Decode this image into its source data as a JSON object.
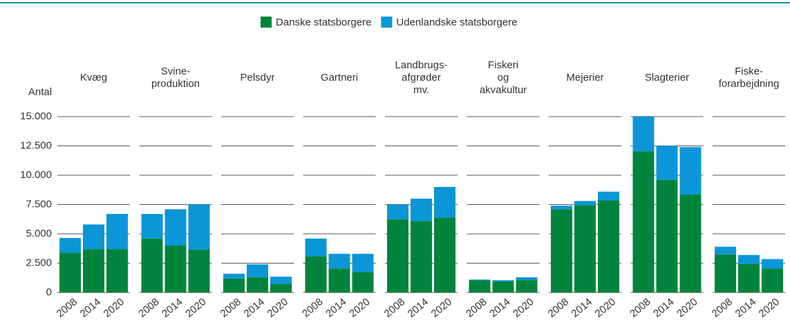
{
  "chart_data": {
    "type": "bar",
    "stacked": true,
    "ylabel": "Antal",
    "ylim": [
      0,
      15000
    ],
    "yticks": [
      0,
      {
        "value": 2500,
        "label": "2.500"
      },
      {
        "value": 5000,
        "label": "5.000"
      },
      {
        "value": 7500,
        "label": "7.500"
      },
      {
        "value": 10000,
        "label": "10.000"
      },
      {
        "value": 12500,
        "label": "12.500"
      },
      {
        "value": 15000,
        "label": "15.000"
      }
    ],
    "grid": true,
    "legend": "top",
    "series": [
      {
        "name": "Danske statsborgere",
        "color": "#00843d"
      },
      {
        "name": "Udenlandske statsborgere",
        "color": "#0b96d8"
      }
    ],
    "panels": [
      {
        "title": [
          "Kvæg"
        ],
        "categories": [
          "2008",
          "2014",
          "2020"
        ],
        "series": [
          {
            "values": [
              3400,
              3700,
              3700
            ]
          },
          {
            "values": [
              1250,
              2100,
              3000
            ]
          }
        ]
      },
      {
        "title": [
          "Svine-",
          "produktion"
        ],
        "categories": [
          "2008",
          "2014",
          "2020"
        ],
        "series": [
          {
            "values": [
              4600,
              4000,
              3650
            ]
          },
          {
            "values": [
              2100,
              3100,
              3850
            ]
          }
        ]
      },
      {
        "title": [
          "Pelsdyr"
        ],
        "categories": [
          "2008",
          "2014",
          "2020"
        ],
        "series": [
          {
            "values": [
              1180,
              1300,
              750
            ]
          },
          {
            "values": [
              420,
              1100,
              600
            ]
          }
        ]
      },
      {
        "title": [
          "Gartneri"
        ],
        "categories": [
          "2008",
          "2014",
          "2020"
        ],
        "series": [
          {
            "values": [
              3100,
              2050,
              1750
            ]
          },
          {
            "values": [
              1500,
              1250,
              1550
            ]
          }
        ]
      },
      {
        "title": [
          "Landbrugs-",
          "afgrøder",
          "mv."
        ],
        "categories": [
          "2008",
          "2014",
          "2020"
        ],
        "series": [
          {
            "values": [
              6250,
              6100,
              6400
            ]
          },
          {
            "values": [
              1250,
              1900,
              2600
            ]
          }
        ]
      },
      {
        "title": [
          "Fiskeri",
          "og",
          "akvakultur"
        ],
        "categories": [
          "2008",
          "2014",
          "2020"
        ],
        "series": [
          {
            "values": [
              1050,
              950,
              1050
            ]
          },
          {
            "values": [
              50,
              100,
              250
            ]
          }
        ]
      },
      {
        "title": [
          "Mejerier"
        ],
        "categories": [
          "2008",
          "2014",
          "2020"
        ],
        "series": [
          {
            "values": [
              7100,
              7450,
              7850
            ]
          },
          {
            "values": [
              300,
              350,
              750
            ]
          }
        ]
      },
      {
        "title": [
          "Slagterier"
        ],
        "categories": [
          "2008",
          "2014",
          "2020"
        ],
        "series": [
          {
            "values": [
              12050,
              9600,
              8350
            ]
          },
          {
            "values": [
              2950,
              2900,
              4050
            ]
          }
        ]
      },
      {
        "title": [
          "Fiske-",
          "forarbejdning"
        ],
        "categories": [
          "2008",
          "2014",
          "2020"
        ],
        "series": [
          {
            "values": [
              3250,
              2450,
              2050
            ]
          },
          {
            "values": [
              650,
              750,
              800
            ]
          }
        ]
      }
    ]
  }
}
